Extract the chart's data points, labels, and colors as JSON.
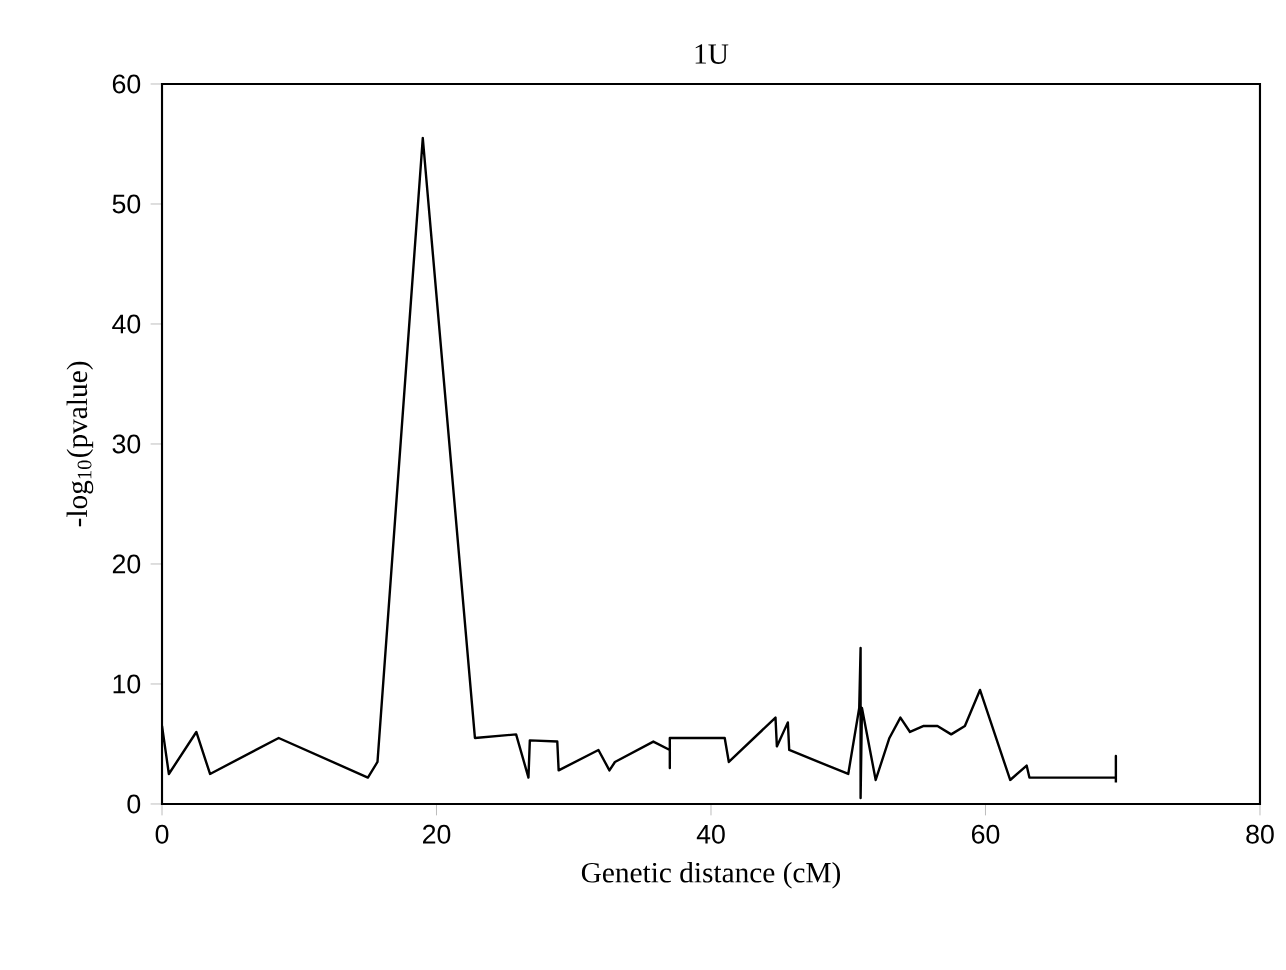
{
  "chart_data": {
    "type": "line",
    "title": "1U",
    "xlabel": "Genetic distance (cM)",
    "ylabel": "-log$_{10}$(pvalue)",
    "xlim": [
      0,
      80
    ],
    "ylim": [
      0,
      60
    ],
    "xticks": [
      0,
      20,
      40,
      60,
      80
    ],
    "yticks": [
      0,
      10,
      20,
      30,
      40,
      50,
      60
    ],
    "grid": false,
    "marker": "none",
    "line_style": "solid",
    "series": [
      {
        "color": "#000000",
        "x": [
          0,
          0.5,
          2.5,
          3.5,
          8.5,
          15,
          15.7,
          19,
          22.8,
          25.8,
          26.7,
          26.8,
          28.8,
          28.9,
          31.8,
          32.6,
          33,
          35.8,
          37,
          37,
          37,
          41,
          41.3,
          44.7,
          44.8,
          45.6,
          45.7,
          50,
          50.8,
          50.9,
          50.9,
          51,
          52,
          53,
          53.8,
          54.5,
          55.5,
          56.5,
          57.5,
          58.5,
          59.6,
          61.8,
          63,
          63.2,
          69.5,
          69.5,
          69.5
        ],
        "values": [
          6.5,
          2.5,
          6,
          2.5,
          5.5,
          2.2,
          3.5,
          55.5,
          5.5,
          5.8,
          2.2,
          5.3,
          5.2,
          2.8,
          4.5,
          2.8,
          3.5,
          5.2,
          4.5,
          3,
          5.5,
          5.5,
          3.5,
          7.2,
          4.8,
          6.8,
          4.5,
          2.5,
          8,
          13,
          0.5,
          8,
          2,
          5.5,
          7.2,
          6,
          6.5,
          6.5,
          5.8,
          6.5,
          9.5,
          2,
          3.2,
          2.2,
          2.2,
          4,
          1.8
        ]
      }
    ]
  }
}
